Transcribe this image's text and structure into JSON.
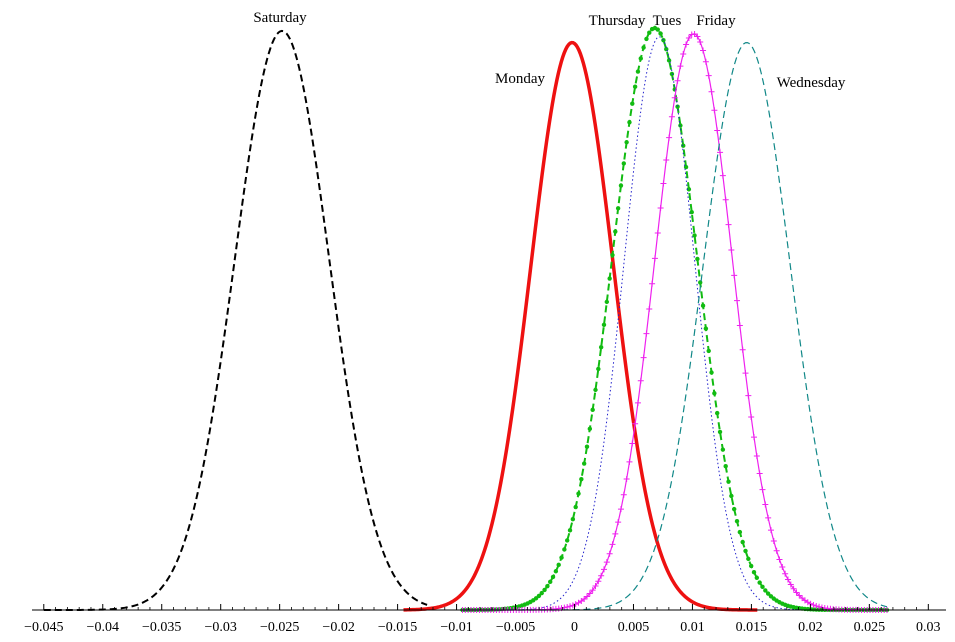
{
  "chart_data": {
    "type": "line",
    "title": "",
    "xlabel": "",
    "ylabel": "",
    "xlim": [
      -0.046,
      0.0315
    ],
    "ylim": [
      0,
      1
    ],
    "grid": false,
    "legend": "none",
    "x_ticks": [
      -0.045,
      -0.04,
      -0.035,
      -0.03,
      -0.025,
      -0.02,
      -0.015,
      -0.01,
      -0.005,
      0,
      0.005,
      0.01,
      0.015,
      0.02,
      0.025,
      0.03
    ],
    "x_tick_labels": [
      "−0.045",
      "−0.04",
      "−0.035",
      "−0.03",
      "−0.025",
      "−0.02",
      "−0.015",
      "−0.01",
      "−0.005",
      "0",
      "0.005",
      "0.01",
      "0.015",
      "0.02",
      "0.025",
      "0.03"
    ],
    "series": [
      {
        "name": "Saturday",
        "mean": -0.0248,
        "sd": 0.004,
        "range": [
          -0.045,
          -0.0125
        ],
        "peak": 0.995,
        "color": "#000000",
        "style": "dashed",
        "marker": "none",
        "width": 2
      },
      {
        "name": "Monday",
        "mean": -0.0002,
        "sd": 0.0035,
        "range": [
          -0.0145,
          0.0155
        ],
        "peak": 0.975,
        "color": "#ee1111",
        "style": "solid",
        "marker": "none",
        "width": 3.5
      },
      {
        "name": "Thursday",
        "mean": 0.0068,
        "sd": 0.0036,
        "range": [
          -0.0095,
          0.0265
        ],
        "peak": 1.0,
        "color": "#11bb11",
        "style": "dashed",
        "marker": "dot",
        "width": 2
      },
      {
        "name": "Tues",
        "mean": 0.0072,
        "sd": 0.003,
        "range": [
          -0.0095,
          0.0265
        ],
        "peak": 0.985,
        "color": "#2222cc",
        "style": "dotted",
        "marker": "none",
        "width": 1
      },
      {
        "name": "Friday",
        "mean": 0.0101,
        "sd": 0.0033,
        "range": [
          -0.0095,
          0.0265
        ],
        "peak": 0.99,
        "color": "#ee22ee",
        "style": "solid",
        "marker": "plus",
        "width": 1.2
      },
      {
        "name": "Wednesday",
        "mean": 0.0146,
        "sd": 0.0037,
        "range": [
          -0.0095,
          0.0265
        ],
        "peak": 0.975,
        "color": "#118888",
        "style": "dashed",
        "marker": "none",
        "width": 1.2
      }
    ]
  }
}
